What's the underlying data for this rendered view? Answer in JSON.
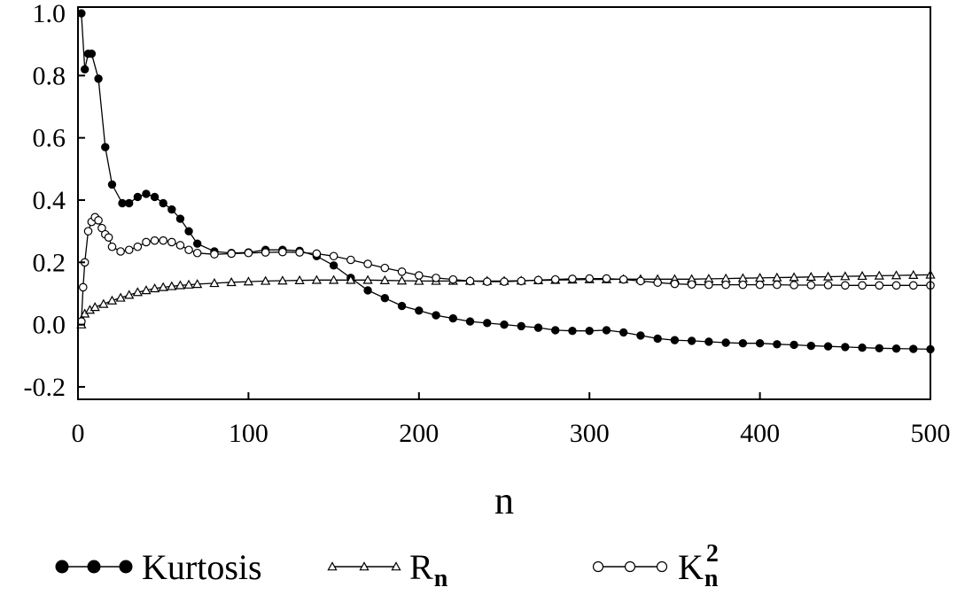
{
  "chart_data": {
    "type": "line",
    "xlabel": "n",
    "ylabel": "",
    "xlim": [
      0,
      500
    ],
    "ylim": [
      -0.2,
      1.0
    ],
    "xticks": [
      "0",
      "100",
      "200",
      "300",
      "400",
      "500"
    ],
    "yticks": [
      "1.0",
      "0.8",
      "0.6",
      "0.4",
      "0.2",
      "0.0",
      "-0.2"
    ],
    "grid": false,
    "legend_position": "bottom",
    "series": [
      {
        "name": "Kurtosis",
        "name_sub": "",
        "name_sup": "",
        "marker": "filled-circle",
        "points": [
          [
            2,
            1.0
          ],
          [
            4,
            0.82
          ],
          [
            6,
            0.87
          ],
          [
            8,
            0.87
          ],
          [
            12,
            0.79
          ],
          [
            16,
            0.57
          ],
          [
            20,
            0.45
          ],
          [
            26,
            0.39
          ],
          [
            30,
            0.39
          ],
          [
            35,
            0.41
          ],
          [
            40,
            0.42
          ],
          [
            45,
            0.41
          ],
          [
            50,
            0.39
          ],
          [
            55,
            0.37
          ],
          [
            60,
            0.34
          ],
          [
            65,
            0.3
          ],
          [
            70,
            0.26
          ],
          [
            80,
            0.235
          ],
          [
            90,
            0.23
          ],
          [
            100,
            0.232
          ],
          [
            110,
            0.24
          ],
          [
            120,
            0.24
          ],
          [
            130,
            0.237
          ],
          [
            140,
            0.22
          ],
          [
            150,
            0.19
          ],
          [
            160,
            0.15
          ],
          [
            170,
            0.11
          ],
          [
            180,
            0.085
          ],
          [
            190,
            0.06
          ],
          [
            200,
            0.045
          ],
          [
            210,
            0.03
          ],
          [
            220,
            0.02
          ],
          [
            230,
            0.01
          ],
          [
            240,
            0.005
          ],
          [
            250,
            0.0
          ],
          [
            260,
            -0.005
          ],
          [
            270,
            -0.01
          ],
          [
            280,
            -0.018
          ],
          [
            290,
            -0.02
          ],
          [
            300,
            -0.02
          ],
          [
            310,
            -0.018
          ],
          [
            320,
            -0.025
          ],
          [
            330,
            -0.035
          ],
          [
            340,
            -0.045
          ],
          [
            350,
            -0.05
          ],
          [
            360,
            -0.052
          ],
          [
            370,
            -0.055
          ],
          [
            380,
            -0.058
          ],
          [
            390,
            -0.06
          ],
          [
            400,
            -0.06
          ],
          [
            410,
            -0.063
          ],
          [
            420,
            -0.065
          ],
          [
            430,
            -0.068
          ],
          [
            440,
            -0.07
          ],
          [
            450,
            -0.072
          ],
          [
            460,
            -0.074
          ],
          [
            470,
            -0.076
          ],
          [
            480,
            -0.077
          ],
          [
            490,
            -0.078
          ],
          [
            500,
            -0.079
          ]
        ]
      },
      {
        "name": "R",
        "name_sub": "n",
        "name_sup": "",
        "marker": "open-triangle",
        "points": [
          [
            2,
            0.0
          ],
          [
            4,
            0.035
          ],
          [
            7,
            0.047
          ],
          [
            10,
            0.056
          ],
          [
            15,
            0.066
          ],
          [
            20,
            0.077
          ],
          [
            25,
            0.086
          ],
          [
            30,
            0.095
          ],
          [
            35,
            0.104
          ],
          [
            40,
            0.11
          ],
          [
            45,
            0.116
          ],
          [
            50,
            0.12
          ],
          [
            55,
            0.123
          ],
          [
            60,
            0.126
          ],
          [
            65,
            0.128
          ],
          [
            70,
            0.13
          ],
          [
            80,
            0.133
          ],
          [
            90,
            0.136
          ],
          [
            100,
            0.138
          ],
          [
            110,
            0.14
          ],
          [
            120,
            0.141
          ],
          [
            130,
            0.142
          ],
          [
            140,
            0.143
          ],
          [
            150,
            0.143
          ],
          [
            160,
            0.143
          ],
          [
            170,
            0.143
          ],
          [
            180,
            0.142
          ],
          [
            190,
            0.141
          ],
          [
            200,
            0.14
          ],
          [
            210,
            0.14
          ],
          [
            220,
            0.14
          ],
          [
            230,
            0.14
          ],
          [
            240,
            0.14
          ],
          [
            250,
            0.14
          ],
          [
            260,
            0.141
          ],
          [
            270,
            0.142
          ],
          [
            280,
            0.143
          ],
          [
            290,
            0.144
          ],
          [
            300,
            0.145
          ],
          [
            310,
            0.145
          ],
          [
            320,
            0.146
          ],
          [
            330,
            0.146
          ],
          [
            340,
            0.146
          ],
          [
            350,
            0.146
          ],
          [
            360,
            0.146
          ],
          [
            370,
            0.147
          ],
          [
            380,
            0.148
          ],
          [
            390,
            0.149
          ],
          [
            400,
            0.15
          ],
          [
            410,
            0.151
          ],
          [
            420,
            0.152
          ],
          [
            430,
            0.153
          ],
          [
            440,
            0.154
          ],
          [
            450,
            0.155
          ],
          [
            460,
            0.156
          ],
          [
            470,
            0.157
          ],
          [
            480,
            0.158
          ],
          [
            490,
            0.159
          ],
          [
            500,
            0.16
          ]
        ]
      },
      {
        "name": "K",
        "name_sub": "n",
        "name_sup": "2",
        "marker": "open-circle",
        "points": [
          [
            2,
            0.01
          ],
          [
            3,
            0.12
          ],
          [
            4,
            0.2
          ],
          [
            6,
            0.3
          ],
          [
            8,
            0.33
          ],
          [
            10,
            0.345
          ],
          [
            12,
            0.335
          ],
          [
            14,
            0.31
          ],
          [
            16,
            0.29
          ],
          [
            18,
            0.28
          ],
          [
            20,
            0.25
          ],
          [
            25,
            0.235
          ],
          [
            30,
            0.24
          ],
          [
            35,
            0.25
          ],
          [
            40,
            0.265
          ],
          [
            45,
            0.27
          ],
          [
            50,
            0.27
          ],
          [
            55,
            0.265
          ],
          [
            60,
            0.255
          ],
          [
            65,
            0.24
          ],
          [
            70,
            0.23
          ],
          [
            80,
            0.226
          ],
          [
            90,
            0.228
          ],
          [
            100,
            0.23
          ],
          [
            110,
            0.232
          ],
          [
            120,
            0.233
          ],
          [
            130,
            0.232
          ],
          [
            140,
            0.228
          ],
          [
            150,
            0.22
          ],
          [
            160,
            0.208
          ],
          [
            170,
            0.195
          ],
          [
            180,
            0.182
          ],
          [
            190,
            0.17
          ],
          [
            200,
            0.158
          ],
          [
            210,
            0.15
          ],
          [
            220,
            0.145
          ],
          [
            230,
            0.14
          ],
          [
            240,
            0.138
          ],
          [
            250,
            0.138
          ],
          [
            260,
            0.14
          ],
          [
            270,
            0.143
          ],
          [
            280,
            0.145
          ],
          [
            290,
            0.147
          ],
          [
            300,
            0.148
          ],
          [
            310,
            0.148
          ],
          [
            320,
            0.145
          ],
          [
            330,
            0.14
          ],
          [
            340,
            0.135
          ],
          [
            350,
            0.131
          ],
          [
            360,
            0.129
          ],
          [
            370,
            0.128
          ],
          [
            380,
            0.128
          ],
          [
            390,
            0.128
          ],
          [
            400,
            0.128
          ],
          [
            410,
            0.128
          ],
          [
            420,
            0.127
          ],
          [
            430,
            0.127
          ],
          [
            440,
            0.127
          ],
          [
            450,
            0.126
          ],
          [
            460,
            0.126
          ],
          [
            470,
            0.126
          ],
          [
            480,
            0.126
          ],
          [
            490,
            0.126
          ],
          [
            500,
            0.126
          ]
        ]
      }
    ]
  }
}
